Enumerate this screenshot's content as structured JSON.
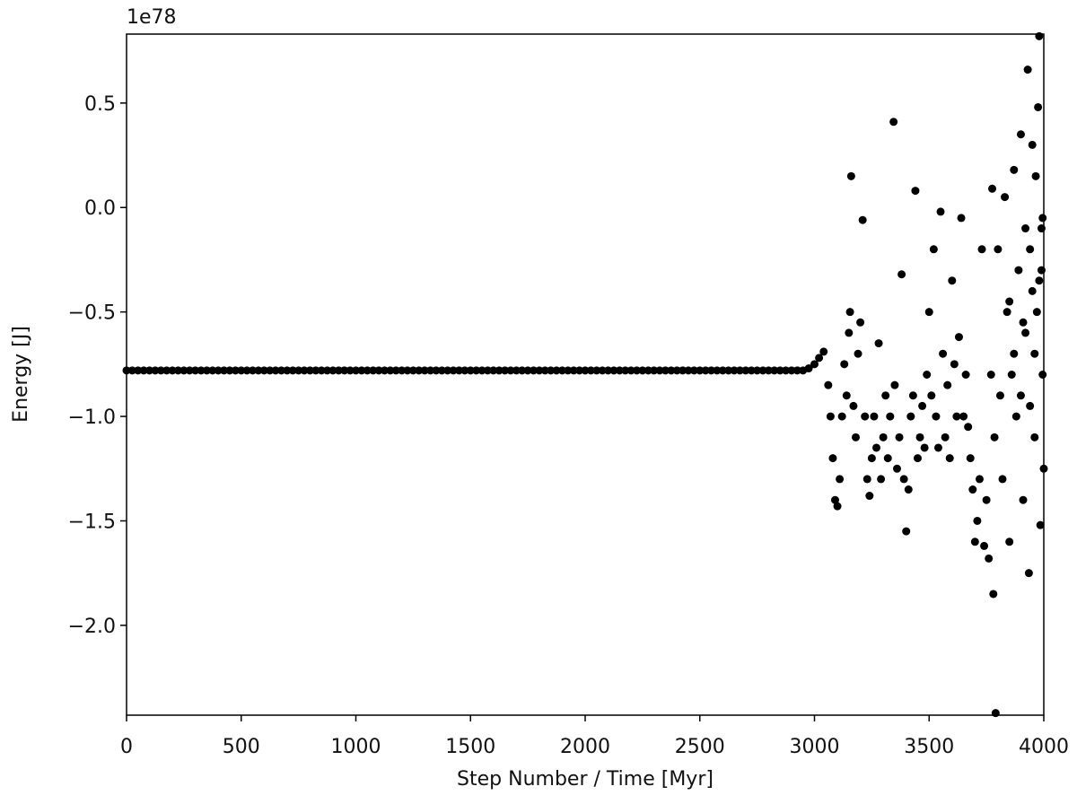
{
  "chart_data": {
    "type": "scatter",
    "x_label": "Step Number / Time [Myr]",
    "y_label": "Energy [J]",
    "y_offset_label": "1e78",
    "color": "#000000",
    "xlim": [
      0,
      4000
    ],
    "ylim": [
      -2.43,
      0.83
    ],
    "xticks": [
      0,
      500,
      1000,
      1500,
      2000,
      2500,
      3000,
      3500,
      4000
    ],
    "yticks": [
      {
        "value": -2,
        "label": "−2.0"
      },
      {
        "value": -1.5,
        "label": "−1.5"
      },
      {
        "value": -1,
        "label": "−1.0"
      },
      {
        "value": -0.5,
        "label": "−0.5"
      },
      {
        "value": 0,
        "label": "0.0"
      },
      0.5
    ],
    "x": [
      0,
      25,
      50,
      75,
      100,
      125,
      150,
      175,
      200,
      225,
      250,
      275,
      300,
      325,
      350,
      375,
      400,
      425,
      450,
      475,
      500,
      525,
      550,
      575,
      600,
      625,
      650,
      675,
      700,
      725,
      750,
      775,
      800,
      825,
      850,
      875,
      900,
      925,
      950,
      975,
      1000,
      1025,
      1050,
      1075,
      1100,
      1125,
      1150,
      1175,
      1200,
      1225,
      1250,
      1275,
      1300,
      1325,
      1350,
      1375,
      1400,
      1425,
      1450,
      1475,
      1500,
      1525,
      1550,
      1575,
      1600,
      1625,
      1650,
      1675,
      1700,
      1725,
      1750,
      1775,
      1800,
      1825,
      1850,
      1875,
      1900,
      1925,
      1950,
      1975,
      2000,
      2025,
      2050,
      2075,
      2100,
      2125,
      2150,
      2175,
      2200,
      2225,
      2250,
      2275,
      2300,
      2325,
      2350,
      2375,
      2400,
      2425,
      2450,
      2475,
      2500,
      2525,
      2550,
      2575,
      2600,
      2625,
      2650,
      2675,
      2700,
      2725,
      2750,
      2775,
      2800,
      2825,
      2850,
      2875,
      2900,
      2925,
      2950,
      2975,
      3000,
      3020,
      3040,
      3060,
      3070,
      3080,
      3090,
      3100,
      3110,
      3120,
      3130,
      3140,
      3150,
      3155,
      3160,
      3170,
      3180,
      3190,
      3200,
      3210,
      3220,
      3230,
      3240,
      3250,
      3260,
      3270,
      3280,
      3290,
      3300,
      3310,
      3320,
      3330,
      3345,
      3350,
      3360,
      3370,
      3380,
      3390,
      3400,
      3410,
      3420,
      3430,
      3440,
      3450,
      3460,
      3470,
      3480,
      3490,
      3500,
      3510,
      3520,
      3530,
      3540,
      3550,
      3560,
      3570,
      3580,
      3590,
      3600,
      3610,
      3620,
      3630,
      3640,
      3650,
      3660,
      3670,
      3680,
      3690,
      3700,
      3710,
      3720,
      3730,
      3740,
      3750,
      3760,
      3770,
      3775,
      3780,
      3785,
      3790,
      3800,
      3810,
      3820,
      3830,
      3840,
      3850,
      3860,
      3870,
      3880,
      3890,
      3900,
      3910,
      3920,
      3930,
      3935,
      3940,
      3950,
      3960,
      3970,
      3975,
      3980,
      3985,
      3990,
      3995,
      4000,
      3900,
      3950,
      3990,
      3920,
      3910,
      3960,
      3980,
      3870,
      3850,
      3940,
      3995,
      3965
    ],
    "values": [
      -0.78,
      -0.78,
      -0.78,
      -0.78,
      -0.78,
      -0.78,
      -0.78,
      -0.78,
      -0.78,
      -0.78,
      -0.78,
      -0.78,
      -0.78,
      -0.78,
      -0.78,
      -0.78,
      -0.78,
      -0.78,
      -0.78,
      -0.78,
      -0.78,
      -0.78,
      -0.78,
      -0.78,
      -0.78,
      -0.78,
      -0.78,
      -0.78,
      -0.78,
      -0.78,
      -0.78,
      -0.78,
      -0.78,
      -0.78,
      -0.78,
      -0.78,
      -0.78,
      -0.78,
      -0.78,
      -0.78,
      -0.78,
      -0.78,
      -0.78,
      -0.78,
      -0.78,
      -0.78,
      -0.78,
      -0.78,
      -0.78,
      -0.78,
      -0.78,
      -0.78,
      -0.78,
      -0.78,
      -0.78,
      -0.78,
      -0.78,
      -0.78,
      -0.78,
      -0.78,
      -0.78,
      -0.78,
      -0.78,
      -0.78,
      -0.78,
      -0.78,
      -0.78,
      -0.78,
      -0.78,
      -0.78,
      -0.78,
      -0.78,
      -0.78,
      -0.78,
      -0.78,
      -0.78,
      -0.78,
      -0.78,
      -0.78,
      -0.78,
      -0.78,
      -0.78,
      -0.78,
      -0.78,
      -0.78,
      -0.78,
      -0.78,
      -0.78,
      -0.78,
      -0.78,
      -0.78,
      -0.78,
      -0.78,
      -0.78,
      -0.78,
      -0.78,
      -0.78,
      -0.78,
      -0.78,
      -0.78,
      -0.78,
      -0.78,
      -0.78,
      -0.78,
      -0.78,
      -0.78,
      -0.78,
      -0.78,
      -0.78,
      -0.78,
      -0.78,
      -0.78,
      -0.78,
      -0.78,
      -0.78,
      -0.78,
      -0.78,
      -0.78,
      -0.78,
      -0.77,
      -0.75,
      -0.72,
      -0.69,
      -0.85,
      -1.0,
      -1.2,
      -1.4,
      -1.43,
      -1.3,
      -1.0,
      -0.75,
      -0.9,
      -0.6,
      -0.5,
      0.15,
      -0.95,
      -1.1,
      -0.7,
      -0.55,
      -0.06,
      -1.0,
      -1.3,
      -1.38,
      -1.2,
      -1.0,
      -1.15,
      -0.65,
      -1.3,
      -1.1,
      -0.9,
      -1.2,
      -1.0,
      0.41,
      -0.85,
      -1.25,
      -1.1,
      -0.32,
      -1.3,
      -1.55,
      -1.35,
      -1.0,
      -0.9,
      0.08,
      -1.2,
      -1.1,
      -0.95,
      -1.15,
      -0.8,
      -0.5,
      -0.9,
      -0.2,
      -1.0,
      -1.15,
      -0.02,
      -0.7,
      -1.1,
      -0.85,
      -1.2,
      -0.35,
      -0.75,
      -1.0,
      -0.62,
      -0.05,
      -1.0,
      -0.8,
      -1.05,
      -1.2,
      -1.35,
      -1.6,
      -1.5,
      -1.3,
      -0.2,
      -1.62,
      -1.4,
      -1.68,
      -0.8,
      0.09,
      -1.85,
      -1.1,
      -2.42,
      -0.2,
      -0.9,
      -1.3,
      0.05,
      -0.5,
      -1.6,
      -0.8,
      0.18,
      -1.0,
      -0.3,
      0.35,
      -1.4,
      -0.6,
      0.66,
      -1.75,
      -0.2,
      0.3,
      -1.1,
      -0.5,
      0.48,
      0.82,
      -1.52,
      -0.1,
      -0.8,
      -1.25,
      -0.9,
      -0.4,
      -0.3,
      -0.1,
      -0.55,
      -0.7,
      -0.35,
      -0.7,
      -0.45,
      -0.95,
      -0.05,
      0.15
    ]
  }
}
